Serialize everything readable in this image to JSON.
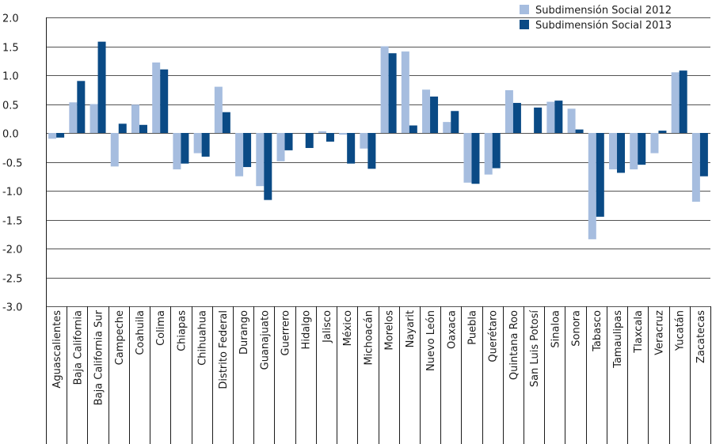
{
  "chart_data": {
    "type": "bar",
    "title": "",
    "xlabel": "",
    "ylabel": "",
    "ylim": [
      -3.0,
      2.0
    ],
    "yticks": [
      "2.0",
      "1.5",
      "1.0",
      "0.5",
      "0.0",
      "-0.5",
      "-1.0",
      "-1.5",
      "-2.0",
      "-2.5",
      "-3.0"
    ],
    "grid": true,
    "legend_position": "top-right",
    "categories": [
      "Aguascalientes",
      "Baja California",
      "Baja California Sur",
      "Campeche",
      "Coahuila",
      "Colima",
      "Chiapas",
      "Chihuahua",
      "Distrito Federal",
      "Durango",
      "Guanajuato",
      "Guerrero",
      "Hidalgo",
      "Jalisco",
      "México",
      "Michoacán",
      "Morelos",
      "Nayarit",
      "Nuevo León",
      "Oaxaca",
      "Puebla",
      "Querétaro",
      "Quintana Roo",
      "San Luis Potosí",
      "Sinaloa",
      "Sonora",
      "Tabasco",
      "Tamaulipas",
      "Tlaxcala",
      "Veracruz",
      "Yucatán",
      "Zacatecas"
    ],
    "series": [
      {
        "name": "Subdimensión Social 2012",
        "color": "#a6bddf",
        "values": [
          -0.1,
          0.53,
          0.5,
          -0.58,
          0.49,
          1.22,
          -0.63,
          -0.35,
          0.8,
          -0.75,
          -0.92,
          -0.49,
          0.0,
          0.03,
          -0.03,
          -0.27,
          1.5,
          1.41,
          0.75,
          0.19,
          -0.86,
          -0.72,
          0.74,
          0.0,
          0.54,
          0.42,
          -1.84,
          -0.63,
          -0.63,
          -0.35,
          1.05,
          -1.19
        ]
      },
      {
        "name": "Subdimensión Social 2013",
        "color": "#0a4a85",
        "values": [
          -0.08,
          0.9,
          1.58,
          0.16,
          0.14,
          1.1,
          -0.53,
          -0.41,
          0.36,
          -0.59,
          -1.16,
          -0.3,
          -0.26,
          -0.15,
          -0.53,
          -0.62,
          1.38,
          0.13,
          0.63,
          0.38,
          -0.88,
          -0.61,
          0.52,
          0.44,
          0.56,
          0.06,
          -1.45,
          -0.69,
          -0.55,
          0.04,
          1.08,
          -0.75
        ]
      }
    ]
  }
}
